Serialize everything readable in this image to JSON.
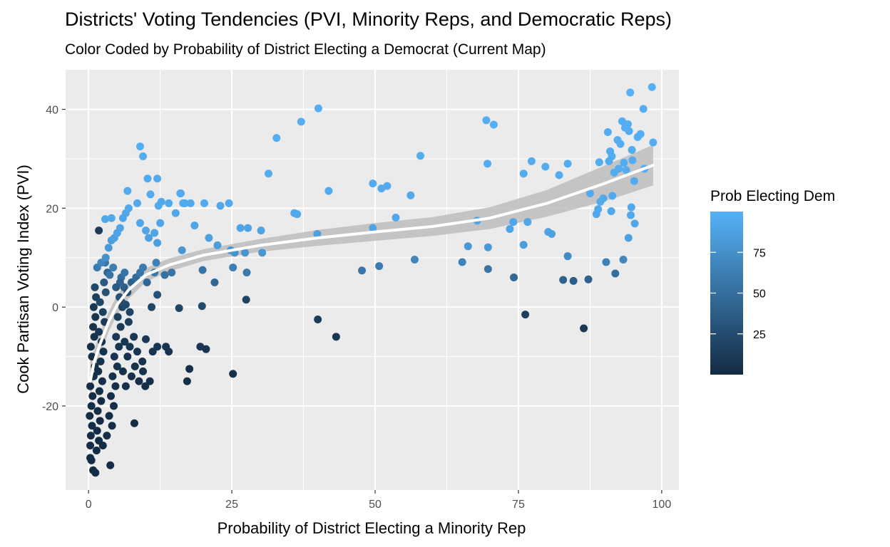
{
  "chart_data": {
    "type": "scatter",
    "title": "Districts' Voting Tendencies (PVI, Minority Reps, and Democratic Reps)",
    "subtitle": "Color Coded by Probability of District Electing a Democrat (Current Map)",
    "xlabel": "Probability of District Electing a Minority Rep",
    "ylabel": "Cook Partisan Voting Index (PVI)",
    "xlim": [
      -4,
      103
    ],
    "ylim": [
      -37,
      48
    ],
    "x_ticks": [
      0,
      25,
      50,
      75,
      100
    ],
    "x_tick_labels": [
      "0",
      "25",
      "50",
      "75",
      "100"
    ],
    "y_ticks": [
      -20,
      0,
      20,
      40
    ],
    "y_tick_labels": [
      "-20",
      "0",
      "20",
      "40"
    ],
    "grid": true,
    "legend": {
      "title": "Prob Electing Dem",
      "position": "right",
      "range": [
        0,
        100
      ],
      "ticks": [
        25,
        50,
        75
      ],
      "tick_labels": [
        "25",
        "50",
        "75"
      ],
      "color_low": "#132B43",
      "color_high": "#56B1F7"
    },
    "smooth": {
      "color": "#ffffff",
      "band_color": "#bdbdbd",
      "points": [
        [
          0.3,
          -15
        ],
        [
          1,
          -11
        ],
        [
          2,
          -7.5
        ],
        [
          3.5,
          -3
        ],
        [
          5,
          0.5
        ],
        [
          7,
          3.5
        ],
        [
          10,
          6.5
        ],
        [
          14,
          8.5
        ],
        [
          20,
          10.5
        ],
        [
          30,
          12.5
        ],
        [
          40,
          14
        ],
        [
          50,
          15.2
        ],
        [
          60,
          16.3
        ],
        [
          70,
          18
        ],
        [
          80,
          21
        ],
        [
          90,
          25
        ],
        [
          98.5,
          28.7
        ]
      ],
      "upper": [
        [
          0.3,
          -11
        ],
        [
          1,
          -8.5
        ],
        [
          2,
          -5.2
        ],
        [
          3.5,
          -1
        ],
        [
          5,
          2.5
        ],
        [
          7,
          5.3
        ],
        [
          10,
          7.9
        ],
        [
          14,
          9.8
        ],
        [
          20,
          11.7
        ],
        [
          30,
          13.8
        ],
        [
          40,
          15.6
        ],
        [
          50,
          17
        ],
        [
          60,
          18.2
        ],
        [
          70,
          20.2
        ],
        [
          80,
          23.7
        ],
        [
          90,
          28.6
        ],
        [
          98.5,
          32.8
        ]
      ],
      "lower": [
        [
          0.3,
          -19
        ],
        [
          1,
          -13.5
        ],
        [
          2,
          -9.8
        ],
        [
          3.5,
          -5
        ],
        [
          5,
          -1.5
        ],
        [
          7,
          1.7
        ],
        [
          10,
          5.1
        ],
        [
          14,
          7.2
        ],
        [
          20,
          9.3
        ],
        [
          30,
          11.2
        ],
        [
          40,
          12.4
        ],
        [
          50,
          13.4
        ],
        [
          60,
          14.4
        ],
        [
          70,
          15.8
        ],
        [
          80,
          18.3
        ],
        [
          90,
          21.4
        ],
        [
          98.5,
          24.6
        ]
      ]
    },
    "points": [
      [
        0.3,
        -30.5,
        1
      ],
      [
        0.5,
        -31,
        1
      ],
      [
        0.3,
        -28,
        1
      ],
      [
        0.8,
        -33,
        1
      ],
      [
        0.4,
        -26,
        1
      ],
      [
        0.6,
        -24,
        2
      ],
      [
        0.2,
        -22,
        1
      ],
      [
        0.5,
        -20,
        2
      ],
      [
        0.7,
        -18,
        2
      ],
      [
        0.3,
        -16,
        2
      ],
      [
        0.9,
        -14,
        3
      ],
      [
        1.1,
        -12,
        3
      ],
      [
        0.6,
        -10,
        4
      ],
      [
        0.4,
        -8,
        4
      ],
      [
        1.0,
        -6,
        5
      ],
      [
        0.8,
        -4,
        6
      ],
      [
        1.2,
        -2,
        7
      ],
      [
        0.9,
        0,
        10
      ],
      [
        1.3,
        2,
        15
      ],
      [
        1.1,
        4,
        22
      ],
      [
        1.5,
        -25,
        1
      ],
      [
        1.8,
        -27,
        1
      ],
      [
        1.4,
        -29,
        1
      ],
      [
        2.0,
        -23,
        1
      ],
      [
        1.6,
        -21,
        2
      ],
      [
        2.2,
        -19,
        2
      ],
      [
        1.9,
        -17,
        3
      ],
      [
        2.4,
        -15,
        3
      ],
      [
        1.7,
        -13,
        4
      ],
      [
        2.1,
        -11,
        5
      ],
      [
        2.6,
        -9,
        6
      ],
      [
        2.3,
        -7,
        8
      ],
      [
        1.8,
        -5,
        10
      ],
      [
        2.8,
        -3,
        12
      ],
      [
        2.5,
        -1,
        15
      ],
      [
        2.0,
        1,
        20
      ],
      [
        3.0,
        3,
        28
      ],
      [
        2.7,
        5,
        35
      ],
      [
        3.3,
        7,
        45
      ],
      [
        2.9,
        9,
        55
      ],
      [
        1.2,
        -33.5,
        1
      ],
      [
        3.8,
        -32,
        1
      ],
      [
        2.5,
        -28,
        1
      ],
      [
        3.2,
        -26,
        2
      ],
      [
        4.1,
        -24,
        2
      ],
      [
        3.6,
        -22,
        2
      ],
      [
        4.4,
        -20,
        3
      ],
      [
        3.9,
        -18,
        3
      ],
      [
        4.7,
        -16,
        4
      ],
      [
        4.2,
        -14,
        5
      ],
      [
        5.0,
        -12,
        6
      ],
      [
        4.5,
        -10,
        7
      ],
      [
        5.3,
        -8,
        8
      ],
      [
        4.8,
        -6,
        10
      ],
      [
        5.6,
        -4,
        12
      ],
      [
        5.1,
        -2,
        15
      ],
      [
        5.9,
        0,
        20
      ],
      [
        5.4,
        2,
        28
      ],
      [
        6.2,
        4,
        38
      ],
      [
        5.7,
        6,
        50
      ],
      [
        6.5,
        -16,
        4
      ],
      [
        6.0,
        -13,
        5
      ],
      [
        6.8,
        -10,
        6
      ],
      [
        7.2,
        -8,
        8
      ],
      [
        6.3,
        -7,
        9
      ],
      [
        7.5,
        -14,
        4
      ],
      [
        8.1,
        -12,
        5
      ],
      [
        8.8,
        -15,
        4
      ],
      [
        9.4,
        -11,
        6
      ],
      [
        8.5,
        -9,
        7
      ],
      [
        7.9,
        -6,
        9
      ],
      [
        7.0,
        -3,
        14
      ],
      [
        9.9,
        -16,
        3
      ],
      [
        10.7,
        -15,
        3
      ],
      [
        11.2,
        -9,
        7
      ],
      [
        12.0,
        -8,
        8
      ],
      [
        13.5,
        -8,
        8
      ],
      [
        14.0,
        -9,
        7
      ],
      [
        17.2,
        -15,
        3
      ],
      [
        17.6,
        -12.5,
        4
      ],
      [
        19.5,
        -8,
        8
      ],
      [
        20.5,
        -8.5,
        7
      ],
      [
        25.2,
        -13.5,
        4
      ],
      [
        8.0,
        -23.5,
        2
      ],
      [
        9.5,
        -13,
        5
      ],
      [
        10.0,
        -6.5,
        10
      ],
      [
        11.0,
        0,
        20
      ],
      [
        15.8,
        -0.2,
        20
      ],
      [
        19.8,
        0.2,
        22
      ],
      [
        7.2,
        -1,
        18
      ],
      [
        6.5,
        0.5,
        22
      ],
      [
        5.8,
        1,
        25
      ],
      [
        6.8,
        3,
        30
      ],
      [
        7.5,
        5,
        40
      ],
      [
        8.3,
        6,
        48
      ],
      [
        9.0,
        7,
        55
      ],
      [
        9.5,
        8,
        60
      ],
      [
        10.2,
        5,
        45
      ],
      [
        11.5,
        7,
        58
      ],
      [
        12.0,
        2.5,
        30
      ],
      [
        13.3,
        6.5,
        52
      ],
      [
        14.5,
        7,
        55
      ],
      [
        6.3,
        7,
        55
      ],
      [
        5.5,
        5,
        42
      ],
      [
        4.8,
        4,
        35
      ],
      [
        4.3,
        8,
        62
      ],
      [
        3.7,
        6.5,
        55
      ],
      [
        1.8,
        15.5,
        12
      ],
      [
        1.5,
        8,
        60
      ],
      [
        2.2,
        9,
        68
      ],
      [
        3.0,
        10,
        75
      ],
      [
        3.5,
        12,
        82
      ],
      [
        4.0,
        13.5,
        85
      ],
      [
        4.5,
        14,
        88
      ],
      [
        5.0,
        15,
        90
      ],
      [
        5.5,
        16,
        90
      ],
      [
        6.0,
        18,
        92
      ],
      [
        6.5,
        19,
        92
      ],
      [
        7.0,
        20,
        94
      ],
      [
        8.5,
        21,
        94
      ],
      [
        9.0,
        17,
        92
      ],
      [
        10.0,
        15.5,
        90
      ],
      [
        10.5,
        14,
        88
      ],
      [
        11.5,
        15,
        90
      ],
      [
        12.5,
        17,
        92
      ],
      [
        14.0,
        21,
        94
      ],
      [
        15.2,
        19,
        92
      ],
      [
        16.0,
        23,
        95
      ],
      [
        16.5,
        21,
        94
      ],
      [
        17.8,
        21,
        94
      ],
      [
        18.5,
        16.5,
        90
      ],
      [
        20.2,
        21,
        94
      ],
      [
        21.0,
        14,
        88
      ],
      [
        22.0,
        5,
        45
      ],
      [
        22.5,
        12.5,
        85
      ],
      [
        23.0,
        20.5,
        93
      ],
      [
        24.5,
        21,
        94
      ],
      [
        24.8,
        11.5,
        80
      ],
      [
        25.5,
        11,
        78
      ],
      [
        25.2,
        8,
        62
      ],
      [
        26.5,
        16,
        90
      ],
      [
        27.3,
        11,
        78
      ],
      [
        27.8,
        16,
        90
      ],
      [
        27.6,
        7,
        58
      ],
      [
        27.5,
        1.5,
        18
      ],
      [
        30.3,
        11,
        80
      ],
      [
        30.1,
        15.5,
        90
      ],
      [
        2.9,
        17.8,
        93
      ],
      [
        4.0,
        18,
        93
      ],
      [
        6.8,
        23.5,
        95
      ],
      [
        9.0,
        32.5,
        97
      ],
      [
        9.5,
        30.5,
        96
      ],
      [
        10.3,
        26,
        95
      ],
      [
        10.8,
        22.8,
        95
      ],
      [
        12.0,
        26,
        95
      ],
      [
        12.2,
        20.5,
        94
      ],
      [
        12.0,
        13,
        86
      ],
      [
        11.8,
        9,
        65
      ],
      [
        12.7,
        21.3,
        94
      ],
      [
        16.1,
        23,
        95
      ],
      [
        16.8,
        21,
        94
      ],
      [
        19.9,
        7.5,
        55
      ],
      [
        16.3,
        11.5,
        80
      ],
      [
        31.4,
        27,
        96
      ],
      [
        32.8,
        34.2,
        97
      ],
      [
        37.1,
        37.5,
        98
      ],
      [
        35.9,
        19,
        93
      ],
      [
        36.4,
        18.8,
        93
      ],
      [
        40.1,
        40.2,
        98
      ],
      [
        39.9,
        14.8,
        88
      ],
      [
        40.0,
        -2.5,
        12
      ],
      [
        41.9,
        23.5,
        95
      ],
      [
        43.2,
        -6,
        8
      ],
      [
        47.7,
        7.4,
        55
      ],
      [
        49.6,
        25,
        95
      ],
      [
        49.6,
        16,
        90
      ],
      [
        50.7,
        8.3,
        60
      ],
      [
        51.1,
        24,
        95
      ],
      [
        52.1,
        24.5,
        95
      ],
      [
        53.6,
        18.1,
        92
      ],
      [
        56.2,
        22.6,
        94
      ],
      [
        56.9,
        9.6,
        68
      ],
      [
        57.9,
        30.6,
        96
      ],
      [
        65.2,
        9.1,
        65
      ],
      [
        66.2,
        12.3,
        82
      ],
      [
        67.8,
        17.5,
        92
      ],
      [
        69.4,
        37.8,
        98
      ],
      [
        69.6,
        29,
        96
      ],
      [
        69.7,
        12.1,
        82
      ],
      [
        69.7,
        7.7,
        55
      ],
      [
        70.7,
        36.9,
        98
      ],
      [
        73.5,
        15.8,
        90
      ],
      [
        74.1,
        17.2,
        92
      ],
      [
        74.2,
        6,
        45
      ],
      [
        75.9,
        27,
        96
      ],
      [
        75.9,
        12.6,
        84
      ],
      [
        76.2,
        -1.5,
        14
      ],
      [
        76.6,
        17.2,
        92
      ],
      [
        77.3,
        29.5,
        96
      ],
      [
        79.7,
        28.4,
        96
      ],
      [
        80.2,
        15.2,
        90
      ],
      [
        80.8,
        14.8,
        88
      ],
      [
        82.1,
        26.7,
        95
      ],
      [
        82.8,
        5.5,
        40
      ],
      [
        83.6,
        29,
        96
      ],
      [
        83.6,
        10.3,
        72
      ],
      [
        84.6,
        5.3,
        38
      ],
      [
        86.4,
        -4.3,
        10
      ],
      [
        87.2,
        5.6,
        40
      ],
      [
        87.5,
        23,
        95
      ],
      [
        89.1,
        29.3,
        96
      ],
      [
        88.6,
        18.8,
        93
      ],
      [
        88.9,
        19.8,
        93
      ],
      [
        89.3,
        21.3,
        94
      ],
      [
        89.8,
        22,
        94
      ],
      [
        90.3,
        9.1,
        65
      ],
      [
        90.6,
        35.4,
        97
      ],
      [
        90.8,
        29.5,
        96
      ],
      [
        91.0,
        31.5,
        96
      ],
      [
        91.2,
        19.4,
        93
      ],
      [
        91.3,
        30.5,
        96
      ],
      [
        91.4,
        22.5,
        94
      ],
      [
        91.7,
        27.2,
        96
      ],
      [
        91.9,
        6.8,
        50
      ],
      [
        92.3,
        33.8,
        97
      ],
      [
        92.5,
        28,
        96
      ],
      [
        92.8,
        33,
        97
      ],
      [
        93.1,
        37.6,
        98
      ],
      [
        93.4,
        29.2,
        96
      ],
      [
        93.6,
        36.3,
        97
      ],
      [
        93.3,
        9.6,
        68
      ],
      [
        93.8,
        27.7,
        96
      ],
      [
        94.1,
        37,
        98
      ],
      [
        94.3,
        35.6,
        97
      ],
      [
        94.5,
        43.4,
        99
      ],
      [
        94.6,
        18.6,
        93
      ],
      [
        94.2,
        14,
        88
      ],
      [
        94.7,
        20.2,
        94
      ],
      [
        94.8,
        31.8,
        96
      ],
      [
        94.9,
        29.7,
        96
      ],
      [
        95.2,
        25.5,
        95
      ],
      [
        95.3,
        16.9,
        92
      ],
      [
        95.8,
        34.4,
        97
      ],
      [
        96.3,
        35,
        97
      ],
      [
        96.8,
        40.1,
        98
      ],
      [
        97.0,
        28,
        96
      ],
      [
        98.3,
        44.5,
        99
      ],
      [
        98.5,
        33.3,
        97
      ]
    ]
  }
}
